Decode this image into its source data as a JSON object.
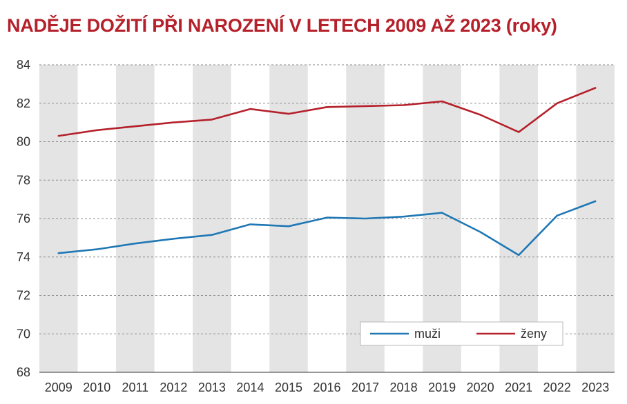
{
  "chart_data": {
    "type": "line",
    "title": "NADĚJE DOŽITÍ PŘI NAROZENÍ V LETECH 2009 AŽ 2023 (roky)",
    "xlabel": "",
    "ylabel": "",
    "x": [
      "2009",
      "2010",
      "2011",
      "2012",
      "2013",
      "2014",
      "2015",
      "2016",
      "2017",
      "2018",
      "2019",
      "2020",
      "2021",
      "2022",
      "2023"
    ],
    "yticks": [
      68,
      70,
      72,
      74,
      76,
      78,
      80,
      82,
      84
    ],
    "ylim": [
      68,
      84
    ],
    "grid": true,
    "alternating_column_bands": true,
    "legend_position": "bottom-right",
    "series": [
      {
        "name": "muži",
        "color": "#1f77b4",
        "values": [
          74.2,
          74.4,
          74.7,
          74.95,
          75.15,
          75.7,
          75.6,
          76.05,
          76.0,
          76.1,
          76.3,
          75.3,
          74.1,
          76.15,
          76.9
        ]
      },
      {
        "name": "ženy",
        "color": "#b5202a",
        "values": [
          80.3,
          80.6,
          80.8,
          81.0,
          81.15,
          81.7,
          81.45,
          81.8,
          81.85,
          81.9,
          82.1,
          81.4,
          80.5,
          82.0,
          82.8
        ]
      }
    ],
    "colors": {
      "band": "#e4e4e5",
      "grid": "#8a8a8a",
      "axis": "#333333"
    }
  }
}
